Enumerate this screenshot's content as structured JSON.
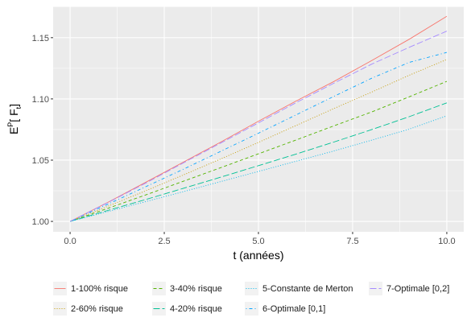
{
  "chart_data": {
    "type": "line",
    "xlabel": "t   (années)",
    "ylabel": {
      "base": "E",
      "sup": "P",
      "open": "[ F",
      "sub": "t",
      "close": "]"
    },
    "xlim": [
      -0.45,
      10.45
    ],
    "ylim": [
      0.9915,
      1.1755
    ],
    "x_ticks": [
      0,
      2.5,
      5,
      7.5,
      10
    ],
    "x_tick_labels": [
      "0.0",
      "2.5",
      "5.0",
      "7.5",
      "10.0"
    ],
    "y_ticks": [
      1.0,
      1.05,
      1.1,
      1.15
    ],
    "y_tick_labels": [
      "1.00",
      "1.05",
      "1.10",
      "1.15"
    ],
    "grid": true,
    "legend_position": "bottom",
    "x": [
      0,
      1,
      2,
      3,
      4,
      5,
      6,
      7,
      8,
      9,
      10
    ],
    "series": [
      {
        "name": "1-100% risque",
        "color": "#F8766D",
        "dash": "solid",
        "values": [
          1.0,
          1.0155,
          1.0318,
          1.0483,
          1.0648,
          1.0818,
          1.0983,
          1.1142,
          1.1312,
          1.1487,
          1.1675
        ]
      },
      {
        "name": "2-60% risque",
        "color": "#C49A00",
        "dash": "dotted",
        "values": [
          1.0,
          1.0123,
          1.0249,
          1.0378,
          1.051,
          1.0645,
          1.0783,
          1.0921,
          1.1055,
          1.1193,
          1.1322
        ]
      },
      {
        "name": "3-40% risque",
        "color": "#53B400",
        "dash": "dashed",
        "values": [
          1.0,
          1.0106,
          1.0215,
          1.0327,
          1.0439,
          1.0552,
          1.0665,
          1.078,
          1.0893,
          1.1017,
          1.1143
        ]
      },
      {
        "name": "4-20% risque",
        "color": "#00C094",
        "dash": "longdash",
        "values": [
          1.0,
          1.0089,
          1.0178,
          1.0269,
          1.0361,
          1.0455,
          1.055,
          1.0648,
          1.0749,
          1.0855,
          1.0968
        ]
      },
      {
        "name": "5-Constante de Merton",
        "color": "#00B6EB",
        "dash": "dotted",
        "values": [
          1.0,
          1.008,
          1.0161,
          1.0242,
          1.0325,
          1.0408,
          1.0491,
          1.0575,
          1.0663,
          1.0753,
          1.0862
        ]
      },
      {
        "name": "6-Optimale [0,1]",
        "color": "#06A4FF",
        "dash": "dotdash",
        "values": [
          1.0,
          1.014,
          1.0282,
          1.0425,
          1.0572,
          1.072,
          1.087,
          1.102,
          1.1168,
          1.1298,
          1.138
        ]
      },
      {
        "name": "7-Optimale [0,2]",
        "color": "#A58AFF",
        "dash": "longdash",
        "values": [
          1.0,
          1.0153,
          1.0311,
          1.0476,
          1.064,
          1.0805,
          1.097,
          1.1128,
          1.1283,
          1.1421,
          1.1553
        ]
      }
    ]
  }
}
